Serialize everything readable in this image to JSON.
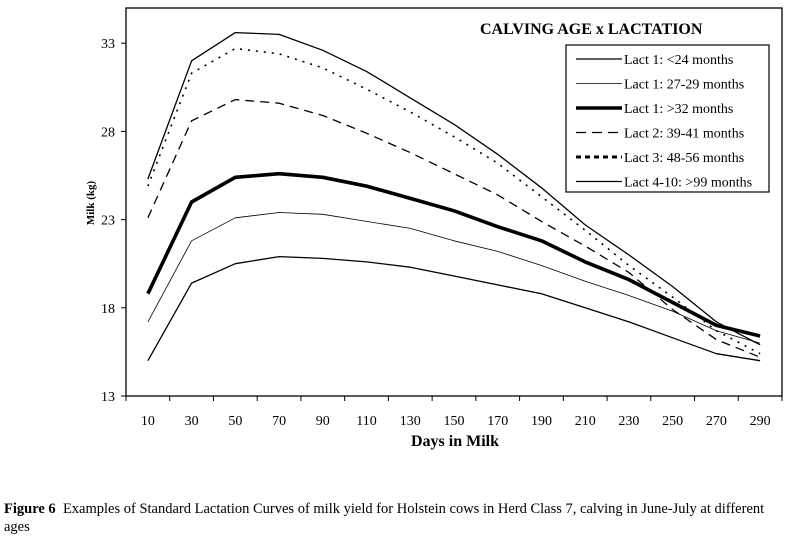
{
  "chart_data": {
    "type": "line",
    "title": "CALVING AGE x LACTATION",
    "xlabel": "Days in Milk",
    "ylabel": "Milk (kg)",
    "x": [
      10,
      30,
      50,
      70,
      90,
      110,
      130,
      150,
      170,
      190,
      210,
      230,
      250,
      270,
      290
    ],
    "x_tick_labels": [
      "10",
      "30",
      "50",
      "70",
      "90",
      "110",
      "130",
      "150",
      "170",
      "190",
      "210",
      "230",
      "250",
      "270",
      "290"
    ],
    "y_ticks": [
      13,
      18,
      23,
      28,
      33
    ],
    "y_tick_labels": [
      "13",
      "18",
      "23",
      "28",
      "33"
    ],
    "ylim": [
      13,
      35
    ],
    "grid": false,
    "legend_position": "top-right",
    "series": [
      {
        "name": "Lact 1: <24 months",
        "style": "thin-solid",
        "values": [
          15.0,
          19.4,
          20.5,
          20.9,
          20.8,
          20.6,
          20.3,
          19.8,
          19.3,
          18.8,
          18.0,
          17.2,
          16.3,
          15.4,
          15.0
        ]
      },
      {
        "name": "Lact 1: 27-29 months",
        "style": "hairline-solid",
        "values": [
          17.2,
          21.8,
          23.1,
          23.4,
          23.3,
          22.9,
          22.5,
          21.8,
          21.2,
          20.4,
          19.5,
          18.7,
          17.8,
          16.7,
          16.0
        ]
      },
      {
        "name": "Lact 1: >32 months",
        "style": "thick-solid",
        "values": [
          18.8,
          24.0,
          25.4,
          25.6,
          25.4,
          24.9,
          24.2,
          23.5,
          22.6,
          21.8,
          20.6,
          19.6,
          18.3,
          17.0,
          16.4
        ]
      },
      {
        "name": "Lact 2: 39-41 months",
        "style": "dashed",
        "values": [
          23.1,
          28.6,
          29.8,
          29.6,
          28.9,
          27.9,
          26.8,
          25.6,
          24.4,
          22.9,
          21.5,
          20.0,
          17.9,
          16.2,
          15.2
        ]
      },
      {
        "name": "Lact 3: 48-56 months",
        "style": "dotted",
        "values": [
          24.9,
          31.3,
          32.7,
          32.4,
          31.6,
          30.4,
          29.1,
          27.7,
          26.2,
          24.3,
          22.4,
          20.4,
          18.6,
          16.7,
          15.4
        ]
      },
      {
        "name": "Lact 4-10: >99 months",
        "style": "thin-solid",
        "values": [
          25.3,
          32.0,
          33.6,
          33.5,
          32.6,
          31.4,
          29.9,
          28.4,
          26.7,
          24.8,
          22.7,
          21.0,
          19.2,
          17.2,
          15.9
        ]
      }
    ]
  },
  "caption": {
    "label": "Figure 6",
    "text": "Examples of Standard Lactation Curves of milk yield for Holstein cows in Herd Class 7, calving in June-July at different ages"
  }
}
